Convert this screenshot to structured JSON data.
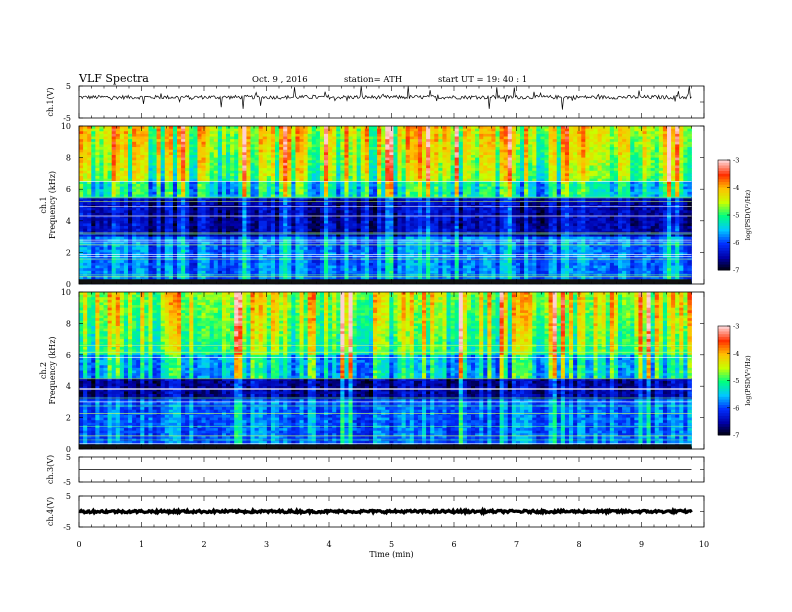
{
  "header": {
    "title": "VLF  Spectra",
    "date": "Oct. 9  , 2016",
    "station": "station= ATH",
    "start": "start  UT  =    19: 40 : 1"
  },
  "colors": {
    "background": "#ffffff",
    "ink": "#000000",
    "colormap": [
      "#000000",
      "#0000a8",
      "#0030ff",
      "#00c8ff",
      "#00ff80",
      "#c8ff00",
      "#ffc000",
      "#ff3000",
      "#ffd0d0"
    ]
  },
  "chart_data": [
    {
      "type": "line",
      "ylabel": "ch.1(V)",
      "ylim": [
        -5,
        5
      ],
      "yticks": [
        "5",
        "-5"
      ],
      "series": [
        {
          "baseline": 1.5,
          "noise_amplitude": 0.6,
          "spike_amplitude": 3.5
        }
      ]
    },
    {
      "type": "heatmap",
      "ylabel": "Frequency (kHz)",
      "channel_label": "ch.1",
      "ylim": [
        0,
        10
      ],
      "yticks": [
        "0",
        "2",
        "4",
        "6",
        "8",
        "10"
      ],
      "colorbar": {
        "label": "log(PSD(V²/Hz)",
        "range": [
          -7,
          -3
        ],
        "ticks": [
          "-3",
          "-4",
          "-5",
          "-6",
          "-7"
        ]
      },
      "dark_band_khz": [
        3.0,
        5.5
      ],
      "bright_band_khz": [
        6.5,
        10.0
      ]
    },
    {
      "type": "heatmap",
      "ylabel": "Frequency (kHz)",
      "channel_label": "ch.2",
      "ylim": [
        0,
        10
      ],
      "yticks": [
        "0",
        "2",
        "4",
        "6",
        "8",
        "10"
      ],
      "colorbar": {
        "label": "log(PSD(V²/Hz)",
        "range": [
          -7,
          -3
        ],
        "ticks": [
          "-3",
          "-4",
          "-5",
          "-6",
          "-7"
        ]
      },
      "dark_band_khz": [
        3.2,
        4.5
      ],
      "bright_band_khz": [
        6.0,
        10.0
      ]
    },
    {
      "type": "line",
      "ylabel": "ch.3(V)",
      "ylim": [
        -5,
        5
      ],
      "yticks": [
        "5",
        "-5"
      ],
      "series": [
        {
          "baseline": 0,
          "noise_amplitude": 0.02,
          "spike_amplitude": 0
        }
      ]
    },
    {
      "type": "line",
      "ylabel": "ch.4(V)",
      "ylim": [
        -5,
        5
      ],
      "yticks": [
        "5",
        "-5"
      ],
      "series": [
        {
          "baseline": 0,
          "noise_amplitude": 0.4,
          "spike_amplitude": 0
        }
      ]
    }
  ],
  "xaxis": {
    "label": "Time  (min)",
    "xlim": [
      0,
      10
    ],
    "ticks": [
      "0",
      "1",
      "2",
      "3",
      "4",
      "5",
      "6",
      "7",
      "8",
      "9",
      "10"
    ],
    "data_end_min": 9.8
  }
}
